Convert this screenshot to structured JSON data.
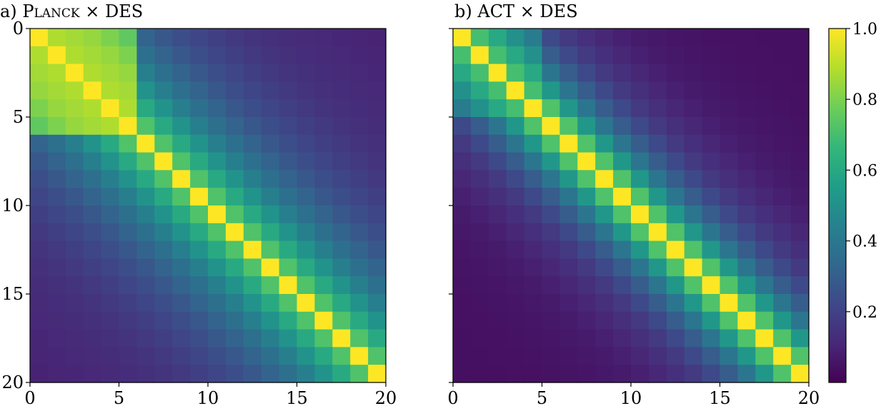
{
  "chart_data": [
    {
      "type": "heatmap",
      "title": "a) Planck × DES",
      "title_parts": {
        "prefix": "a) ",
        "name": "Planck",
        "suffix": " × DES",
        "name_style": "small-caps"
      },
      "grid_size": 20,
      "xlim": [
        0,
        20
      ],
      "ylim": [
        20,
        0
      ],
      "xticks": [
        0,
        5,
        10,
        15,
        20
      ],
      "yticks": [
        0,
        5,
        10,
        15,
        20
      ],
      "xtick_labels": [
        "0",
        "5",
        "10",
        "15",
        "20"
      ],
      "ytick_labels": [
        "0",
        "5",
        "10",
        "15",
        "20"
      ],
      "correlation_model": {
        "diag": 1.0,
        "off_diag": [
          0.88,
          0.86,
          0.84,
          0.8,
          0.75
        ],
        "block_end": 6,
        "decay": 0.82,
        "floor": 0.08
      }
    },
    {
      "type": "heatmap",
      "title": "b) ACT × DES",
      "grid_size": 20,
      "xlim": [
        0,
        20
      ],
      "ylim": [
        20,
        0
      ],
      "xticks": [
        0,
        5,
        10,
        15,
        20
      ],
      "xtick_labels": [
        "0",
        "5",
        "10",
        "15",
        "20"
      ],
      "yticks": [
        0,
        5,
        10,
        15,
        20
      ],
      "ytick_labels": [
        "",
        "",
        "",
        "",
        ""
      ],
      "correlation_model": {
        "diag": 1.0,
        "off_diag": [
          0.7,
          0.6,
          0.5,
          0.42,
          0.35
        ],
        "block_end": 5,
        "decay": 0.72,
        "floor": 0.04
      }
    }
  ],
  "colorbar": {
    "colormap": "viridis",
    "range": [
      0.0,
      1.0
    ],
    "ticks": [
      0.2,
      0.4,
      0.6,
      0.8,
      1.0
    ],
    "tick_labels": [
      "0.2",
      "0.4",
      "0.6",
      "0.8",
      "1.0"
    ]
  },
  "colors": {
    "viridis_stops": [
      "#440154",
      "#482878",
      "#3e4989",
      "#31688e",
      "#26828e",
      "#1f9e89",
      "#35b779",
      "#6ece58",
      "#b5de2b",
      "#fde725"
    ]
  }
}
